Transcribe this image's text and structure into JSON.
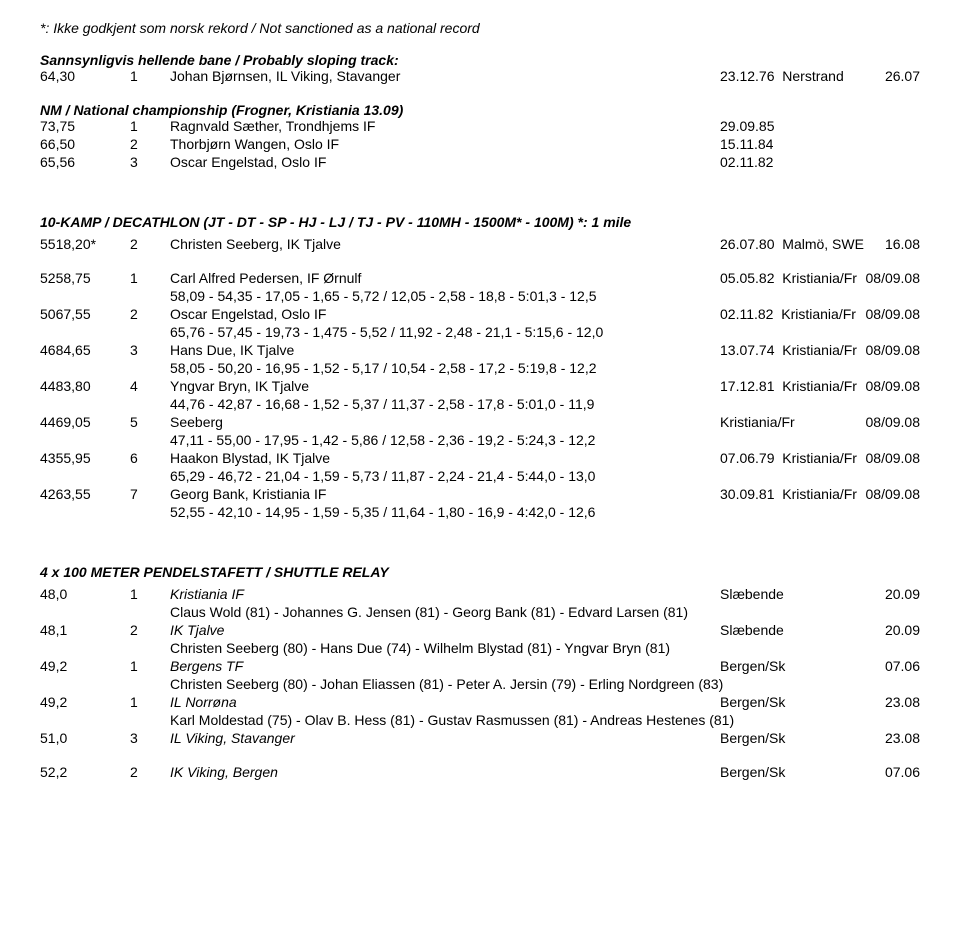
{
  "header": {
    "note": "*: Ikke godkjent som norsk rekord / Not sanctioned as a national record",
    "sloping_title": "Sannsynligvis hellende bane / Probably sloping track:",
    "sloping_row": {
      "c1": "64,30",
      "c2": "1",
      "c3": "Johan Bjørnsen, IL Viking, Stavanger",
      "c4": "23.12.76  Nerstrand",
      "c5": "26.07"
    },
    "nm_title": "NM / National championship (Frogner, Kristiania 13.09)",
    "nm_rows": [
      {
        "c1": "73,75",
        "c2": "1",
        "c3": "Ragnvald Sæther, Trondhjems IF",
        "c4": "29.09.85",
        "c5": ""
      },
      {
        "c1": "66,50",
        "c2": "2",
        "c3": "Thorbjørn Wangen, Oslo IF",
        "c4": "15.11.84",
        "c5": ""
      },
      {
        "c1": "65,56",
        "c2": "3",
        "c3": "Oscar Engelstad, Oslo IF",
        "c4": "02.11.82",
        "c5": ""
      }
    ]
  },
  "decathlon": {
    "title": "10-KAMP / DECATHLON (JT - DT - SP - HJ - LJ / TJ - PV - 110MH - 1500M* - 100M) *: 1 mile",
    "lead_row": {
      "c1": "5518,20*",
      "c2": "2",
      "c3": "Christen Seeberg, IK Tjalve",
      "c4": "26.07.80  Malmö, SWE",
      "c5": "16.08"
    },
    "rows": [
      {
        "c1": "5258,75",
        "c2": "1",
        "c3": "Carl Alfred Pedersen, IF Ørnulf",
        "c4": "05.05.82  Kristiania/Fr",
        "c5": "08/09.08",
        "detail": "58,09 - 54,35 - 17,05 - 1,65 - 5,72 / 12,05 - 2,58 - 18,8 - 5:01,3 - 12,5"
      },
      {
        "c1": "5067,55",
        "c2": "2",
        "c3": "Oscar Engelstad, Oslo IF",
        "c4": "02.11.82  Kristiania/Fr",
        "c5": "08/09.08",
        "detail": "65,76 - 57,45 - 19,73 - 1,475 - 5,52 / 11,92 - 2,48 - 21,1 - 5:15,6 - 12,0"
      },
      {
        "c1": "4684,65",
        "c2": "3",
        "c3": "Hans Due, IK Tjalve",
        "c4": "13.07.74  Kristiania/Fr",
        "c5": "08/09.08",
        "detail": "58,05 - 50,20 - 16,95 - 1,52 - 5,17 / 10,54 - 2,58 - 17,2 - 5:19,8 - 12,2"
      },
      {
        "c1": "4483,80",
        "c2": "4",
        "c3": "Yngvar Bryn, IK Tjalve",
        "c4": "17.12.81  Kristiania/Fr",
        "c5": "08/09.08",
        "detail": "44,76 - 42,87 - 16,68 - 1,52 - 5,37 / 11,37 - 2,58 - 17,8 - 5:01,0 - 11,9"
      },
      {
        "c1": "4469,05",
        "c2": "5",
        "c3": "Seeberg",
        "c4": "Kristiania/Fr",
        "c5": "08/09.08",
        "detail": "47,11 - 55,00 - 17,95 - 1,42 - 5,86 / 12,58 - 2,36 - 19,2 - 5:24,3 - 12,2"
      },
      {
        "c1": "4355,95",
        "c2": "6",
        "c3": "Haakon Blystad, IK Tjalve",
        "c4": "07.06.79  Kristiania/Fr",
        "c5": "08/09.08",
        "detail": "65,29 - 46,72 - 21,04 - 1,59 - 5,73 / 11,87 - 2,24 - 21,4 - 5:44,0 - 13,0"
      },
      {
        "c1": "4263,55",
        "c2": "7",
        "c3": "Georg Bank, Kristiania IF",
        "c4": "30.09.81  Kristiania/Fr",
        "c5": "08/09.08",
        "detail": "52,55 - 42,10 - 14,95 - 1,59 - 5,35 / 11,64 - 1,80 - 16,9 - 4:42,0 - 12,6"
      }
    ]
  },
  "relay": {
    "title": "4 x 100 METER PENDELSTAFETT / SHUTTLE RELAY",
    "rows": [
      {
        "c1": "48,0",
        "c2": "1",
        "c3": "Kristiania IF",
        "c4": "Slæbende",
        "c5": "20.09",
        "detail": "Claus Wold (81) - Johannes G. Jensen (81) - Georg Bank (81) - Edvard Larsen (81)",
        "italic": true
      },
      {
        "c1": "48,1",
        "c2": "2",
        "c3": "IK Tjalve",
        "c4": "Slæbende",
        "c5": "20.09",
        "detail": "Christen Seeberg (80) - Hans Due (74) - Wilhelm Blystad (81) - Yngvar Bryn (81)",
        "italic": true
      },
      {
        "c1": "49,2",
        "c2": "1",
        "c3": "Bergens TF",
        "c4": "Bergen/Sk",
        "c5": "07.06",
        "detail": "Christen Seeberg (80) - Johan Eliassen (81) - Peter A. Jersin (79) - Erling Nordgreen (83)",
        "italic": true
      },
      {
        "c1": "49,2",
        "c2": "1",
        "c3": "IL Norrøna",
        "c4": "Bergen/Sk",
        "c5": "23.08",
        "detail": "Karl Moldestad (75) - Olav B. Hess (81) - Gustav Rasmussen (81) - Andreas Hestenes (81)",
        "italic": true
      },
      {
        "c1": "51,0",
        "c2": "3",
        "c3": "IL Viking, Stavanger",
        "c4": "Bergen/Sk",
        "c5": "23.08",
        "italic": true
      },
      {
        "c1": "52,2",
        "c2": "2",
        "c3": "IK Viking, Bergen",
        "c4": "Bergen/Sk",
        "c5": "07.06",
        "italic": true,
        "gap": true
      }
    ]
  }
}
